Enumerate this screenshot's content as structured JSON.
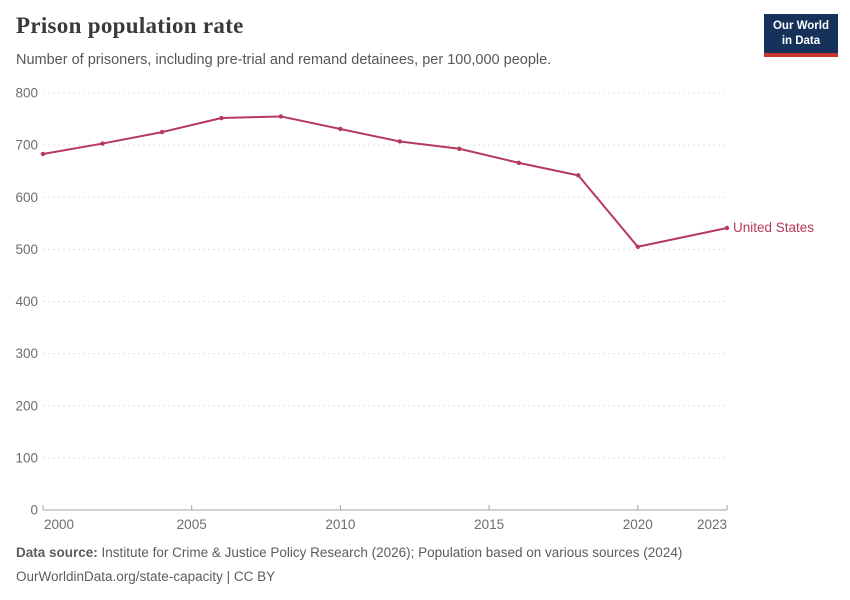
{
  "header": {
    "title": "Prison population rate",
    "subtitle": "Number of prisoners, including pre-trial and remand detainees, per 100,000 people.",
    "logo": {
      "line1": "Our World",
      "line2": "in Data"
    }
  },
  "chart_data": {
    "type": "line",
    "title": "Prison population rate",
    "subtitle": "Number of prisoners, including pre-trial and remand detainees, per 100,000 people.",
    "series": [
      {
        "name": "United States",
        "color": "#b63a5c",
        "x": [
          2000,
          2002,
          2004,
          2006,
          2008,
          2010,
          2012,
          2014,
          2016,
          2018,
          2020,
          2023
        ],
        "values": [
          683,
          703,
          725,
          752,
          755,
          731,
          707,
          693,
          666,
          642,
          505,
          541
        ]
      }
    ],
    "xticks": [
      2000,
      2005,
      2010,
      2015,
      2020,
      2023
    ],
    "yticks": [
      0,
      100,
      200,
      300,
      400,
      500,
      600,
      700,
      800
    ],
    "xlim": [
      2000,
      2023
    ],
    "ylim": [
      0,
      800
    ],
    "grid": "horizontal-dashed",
    "legend_position": "end-of-line-label"
  },
  "footer": {
    "source_label": "Data source:",
    "source_text": "Institute for Crime & Justice Policy Research (2026); Population based on various sources (2024)",
    "link_line": "OurWorldinData.org/state-capacity | CC BY"
  },
  "colors": {
    "series": "#b63a5c",
    "logo_bg": "#16325a",
    "logo_accent": "#c8372d",
    "grid": "#e0e0e0",
    "axis": "#a3a3a3",
    "tick_label": "#6e6e6e"
  }
}
